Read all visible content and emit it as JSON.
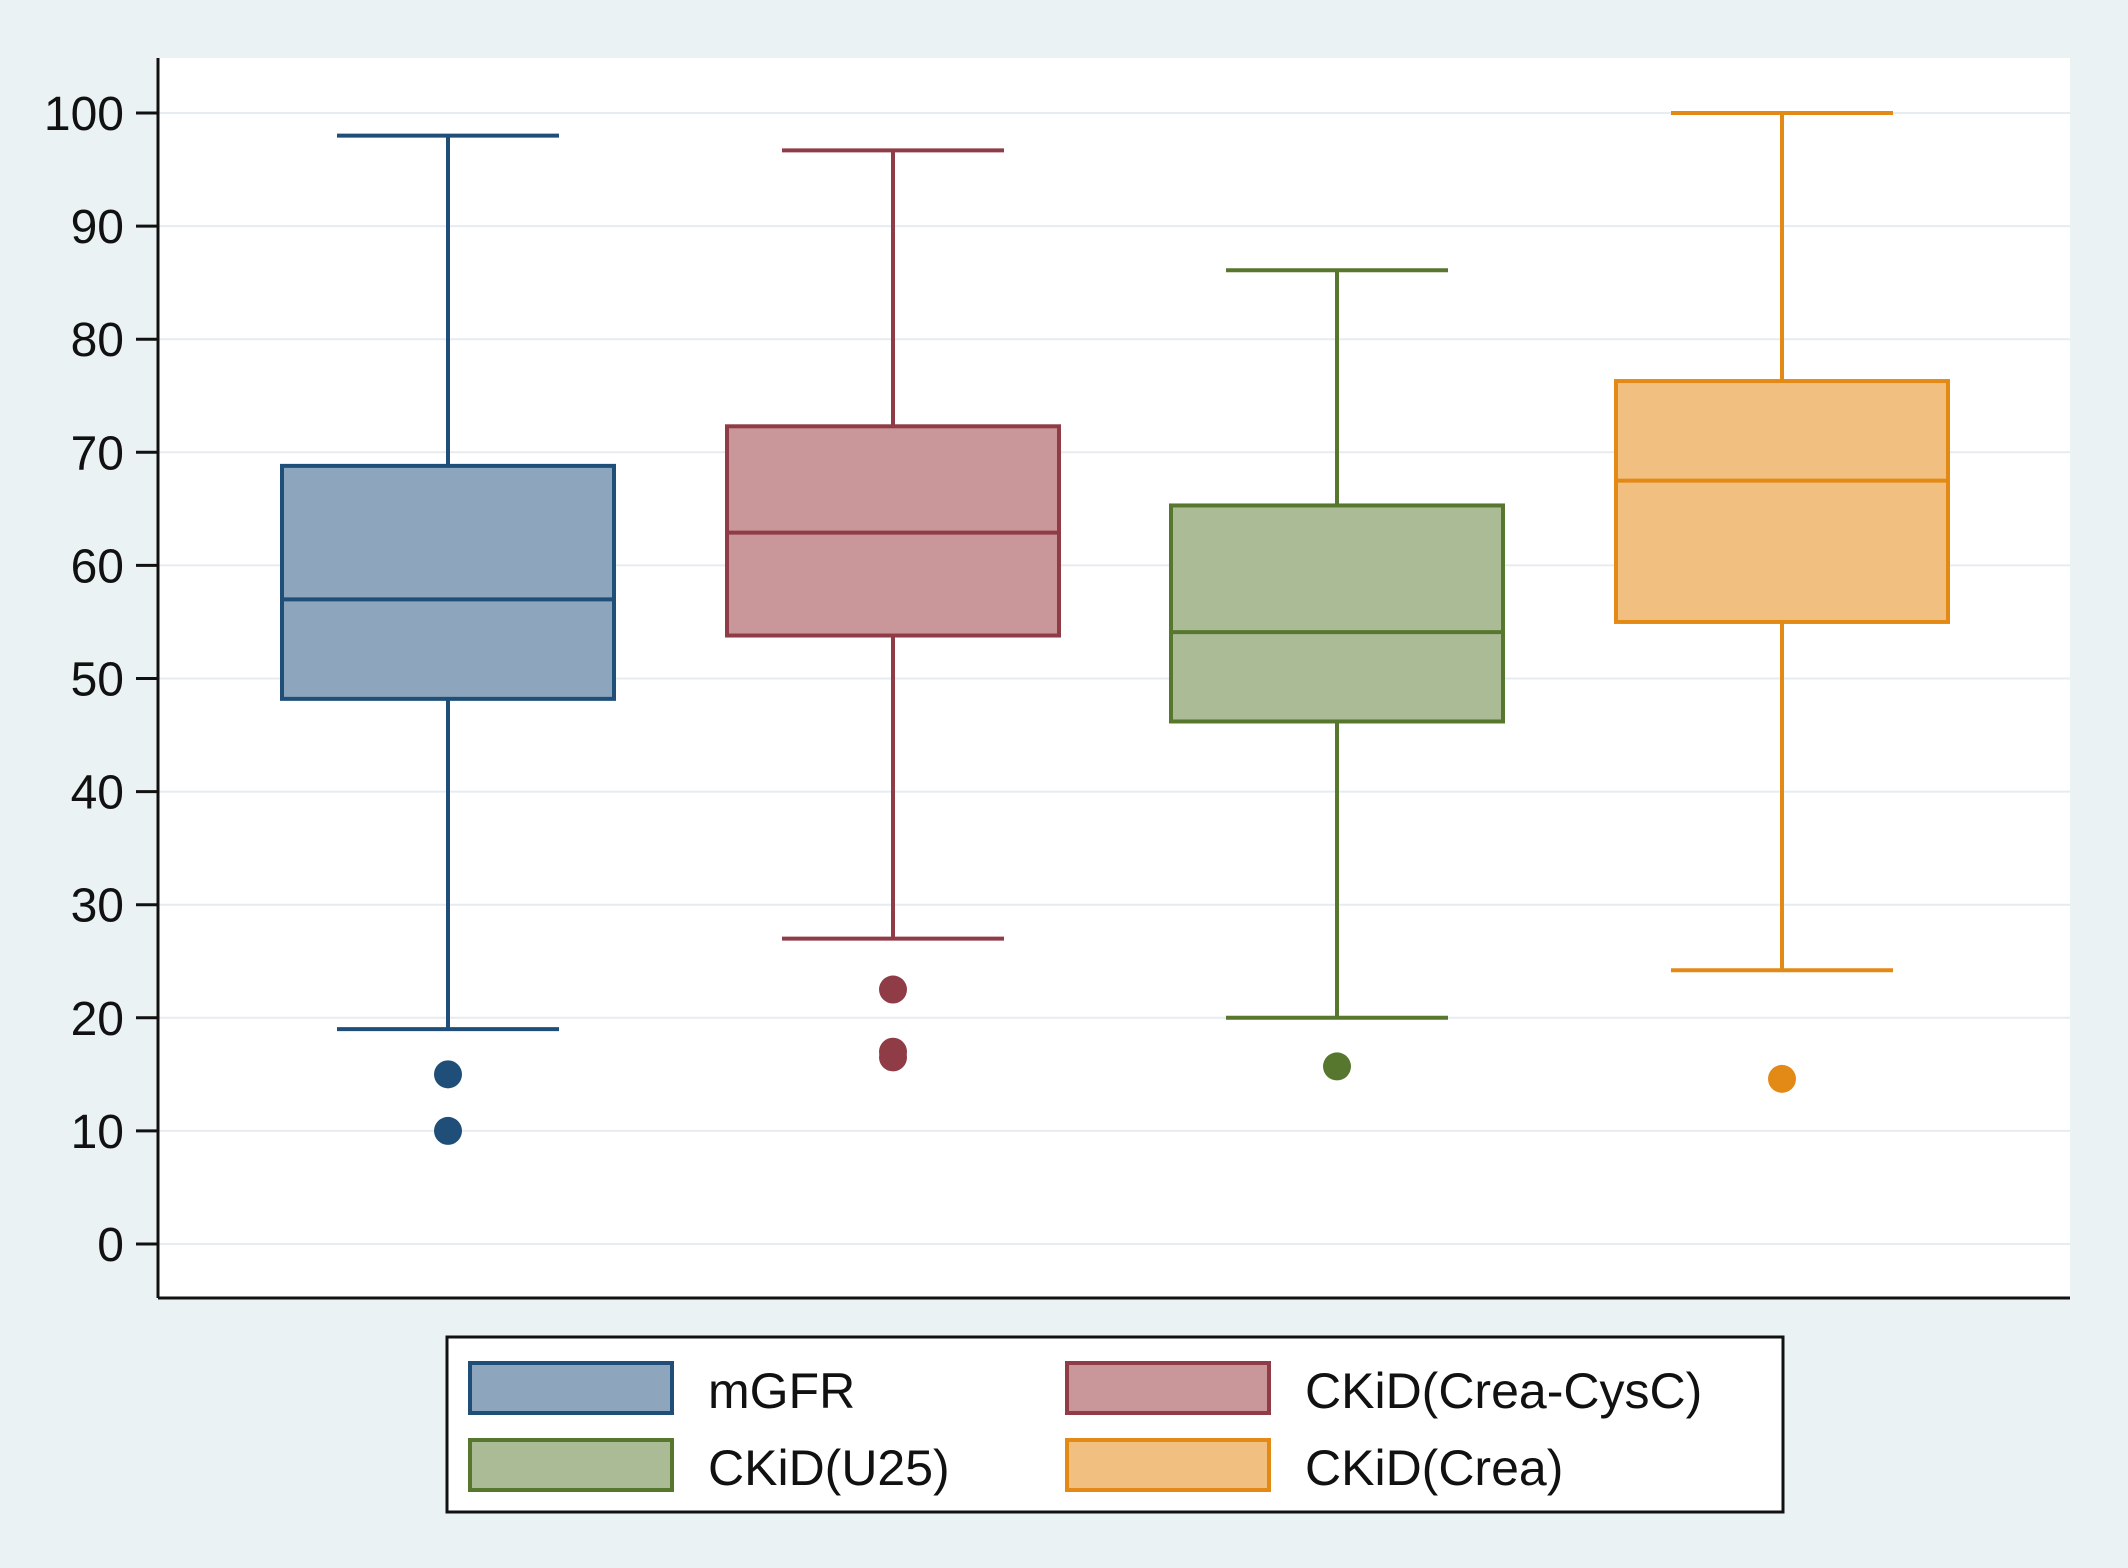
{
  "chart_data": {
    "type": "box",
    "title": "",
    "xlabel": "",
    "ylabel": "",
    "ylim": [
      -5,
      105
    ],
    "yticks": [
      0,
      10,
      20,
      30,
      40,
      50,
      60,
      70,
      80,
      90,
      100
    ],
    "grid": true,
    "legend_position": "bottom",
    "series": [
      {
        "name": "mGFR",
        "min": 19,
        "q1": 48.2,
        "median": 57,
        "q3": 68.8,
        "max": 98,
        "outliers": [
          15,
          10
        ],
        "fill": "#8ea6bd",
        "stroke": "#1f4e79"
      },
      {
        "name": "CKiD(Crea-CysC)",
        "min": 27,
        "q1": 53.8,
        "median": 62.9,
        "q3": 72.3,
        "max": 96.7,
        "outliers": [
          22.5,
          17,
          16.5
        ],
        "fill": "#c99799",
        "stroke": "#903c47"
      },
      {
        "name": "CKiD(U25)",
        "min": 20,
        "q1": 46.2,
        "median": 54.1,
        "q3": 65.3,
        "max": 86.1,
        "outliers": [
          15.7
        ],
        "fill": "#abbb96",
        "stroke": "#58772e"
      },
      {
        "name": "CKiD(Crea)",
        "min": 24.2,
        "q1": 55,
        "median": 67.5,
        "q3": 76.3,
        "max": 100,
        "outliers": [
          14.6
        ],
        "fill": "#f1c080",
        "stroke": "#e38a16"
      }
    ]
  }
}
